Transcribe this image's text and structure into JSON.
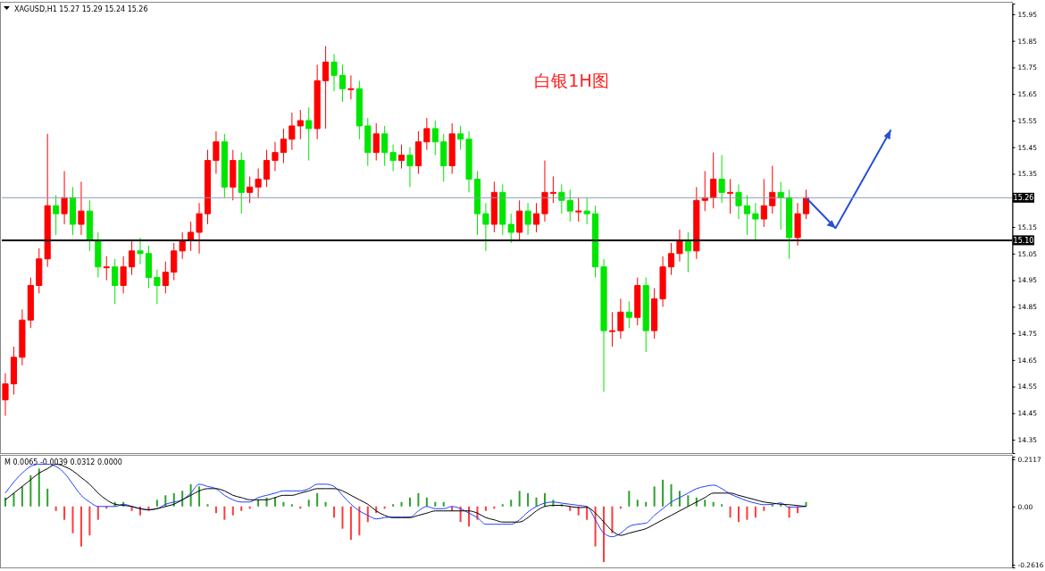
{
  "chart_data": [
    {
      "type": "candlestick",
      "title": "白银1H图",
      "subtitle": "XAGUSD,H1  15.27 15.29 15.24 15.26",
      "tick_labels": "y",
      "categories": [
        null,
        null,
        null,
        null,
        null,
        null,
        null,
        null,
        null,
        null,
        null,
        null,
        null,
        null,
        null,
        null,
        null,
        null,
        null,
        null,
        null,
        null,
        null,
        null,
        null,
        null,
        null,
        null,
        null,
        null,
        null,
        null,
        null,
        null,
        null,
        null,
        null,
        null,
        null,
        null,
        null,
        null,
        null,
        null,
        null,
        null,
        null,
        null,
        null,
        null,
        null,
        null,
        null,
        null,
        null,
        null,
        null,
        null,
        null,
        null,
        null,
        null,
        null,
        null,
        null,
        null,
        null,
        null,
        null,
        null,
        null,
        null,
        null,
        null,
        null,
        null,
        null,
        null,
        null,
        null,
        null,
        null,
        null,
        null,
        null,
        null,
        null,
        null,
        null,
        null,
        null,
        null,
        null,
        null,
        null,
        null,
        null,
        null,
        null,
        null,
        null,
        null,
        null,
        null,
        null,
        null,
        null,
        null,
        null,
        null,
        null,
        null,
        null,
        null,
        null,
        null,
        null,
        null,
        null,
        null
      ],
      "ohlc": [
        [
          14.5,
          14.6,
          14.44,
          14.56
        ],
        [
          14.56,
          14.7,
          14.52,
          14.66
        ],
        [
          14.66,
          14.84,
          14.63,
          14.8
        ],
        [
          14.8,
          14.96,
          14.77,
          14.93
        ],
        [
          14.93,
          15.07,
          14.9,
          15.03
        ],
        [
          15.03,
          15.5,
          15.0,
          15.23
        ],
        [
          15.23,
          15.27,
          15.12,
          15.2
        ],
        [
          15.2,
          15.36,
          15.16,
          15.26
        ],
        [
          15.26,
          15.3,
          15.12,
          15.16
        ],
        [
          15.16,
          15.32,
          15.12,
          15.21
        ],
        [
          15.21,
          15.25,
          15.06,
          15.1
        ],
        [
          15.1,
          15.13,
          14.96,
          15.0
        ],
        [
          15.0,
          15.04,
          14.95,
          15.0
        ],
        [
          15.0,
          15.03,
          14.86,
          14.93
        ],
        [
          14.93,
          15.04,
          14.9,
          15.0
        ],
        [
          15.0,
          15.1,
          14.97,
          15.06
        ],
        [
          15.06,
          15.11,
          15.01,
          15.05
        ],
        [
          15.05,
          15.08,
          14.92,
          14.96
        ],
        [
          14.96,
          14.99,
          14.86,
          14.93
        ],
        [
          14.93,
          15.02,
          14.9,
          14.98
        ],
        [
          14.98,
          15.09,
          14.95,
          15.06
        ],
        [
          15.06,
          15.13,
          15.03,
          15.1
        ],
        [
          15.1,
          15.17,
          15.06,
          15.13
        ],
        [
          15.13,
          15.24,
          15.05,
          15.2
        ],
        [
          15.2,
          15.44,
          15.16,
          15.4
        ],
        [
          15.4,
          15.51,
          15.35,
          15.47
        ],
        [
          15.47,
          15.5,
          15.26,
          15.3
        ],
        [
          15.3,
          15.44,
          15.25,
          15.4
        ],
        [
          15.4,
          15.43,
          15.2,
          15.28
        ],
        [
          15.28,
          15.34,
          15.24,
          15.3
        ],
        [
          15.3,
          15.37,
          15.26,
          15.33
        ],
        [
          15.33,
          15.44,
          15.3,
          15.4
        ],
        [
          15.4,
          15.47,
          15.36,
          15.43
        ],
        [
          15.43,
          15.52,
          15.39,
          15.48
        ],
        [
          15.48,
          15.58,
          15.44,
          15.53
        ],
        [
          15.53,
          15.59,
          15.48,
          15.55
        ],
        [
          15.55,
          15.6,
          15.4,
          15.52
        ],
        [
          15.52,
          15.76,
          15.48,
          15.7
        ],
        [
          15.7,
          15.83,
          15.52,
          15.77
        ],
        [
          15.77,
          15.8,
          15.66,
          15.72
        ],
        [
          15.72,
          15.76,
          15.62,
          15.67
        ],
        [
          15.67,
          15.72,
          15.63,
          15.67
        ],
        [
          15.67,
          15.7,
          15.48,
          15.53
        ],
        [
          15.53,
          15.56,
          15.38,
          15.43
        ],
        [
          15.43,
          15.54,
          15.4,
          15.5
        ],
        [
          15.5,
          15.53,
          15.38,
          15.43
        ],
        [
          15.43,
          15.46,
          15.36,
          15.4
        ],
        [
          15.4,
          15.46,
          15.37,
          15.42
        ],
        [
          15.42,
          15.45,
          15.3,
          15.38
        ],
        [
          15.38,
          15.51,
          15.35,
          15.47
        ],
        [
          15.47,
          15.56,
          15.44,
          15.52
        ],
        [
          15.52,
          15.55,
          15.42,
          15.47
        ],
        [
          15.47,
          15.5,
          15.32,
          15.38
        ],
        [
          15.38,
          15.54,
          15.35,
          15.5
        ],
        [
          15.5,
          15.53,
          15.44,
          15.48
        ],
        [
          15.48,
          15.51,
          15.28,
          15.33
        ],
        [
          15.33,
          15.36,
          15.12,
          15.2
        ],
        [
          15.2,
          15.24,
          15.06,
          15.16
        ],
        [
          15.16,
          15.32,
          15.13,
          15.28
        ],
        [
          15.28,
          15.31,
          15.12,
          15.16
        ],
        [
          15.16,
          15.2,
          15.09,
          15.13
        ],
        [
          15.13,
          15.25,
          15.1,
          15.21
        ],
        [
          15.21,
          15.24,
          15.12,
          15.16
        ],
        [
          15.16,
          15.24,
          15.13,
          15.2
        ],
        [
          15.2,
          15.4,
          15.17,
          15.28
        ],
        [
          15.28,
          15.34,
          15.24,
          15.28
        ],
        [
          15.28,
          15.31,
          15.2,
          15.25
        ],
        [
          15.25,
          15.29,
          15.17,
          15.21
        ],
        [
          15.21,
          15.26,
          15.17,
          15.21
        ],
        [
          15.21,
          15.26,
          15.16,
          15.2
        ],
        [
          15.2,
          15.23,
          14.96,
          15.0
        ],
        [
          15.0,
          15.03,
          14.53,
          14.76
        ],
        [
          14.76,
          14.83,
          14.7,
          14.76
        ],
        [
          14.76,
          14.88,
          14.73,
          14.83
        ],
        [
          14.83,
          14.87,
          14.77,
          14.81
        ],
        [
          14.81,
          14.96,
          14.78,
          14.93
        ],
        [
          14.93,
          14.96,
          14.68,
          14.76
        ],
        [
          14.76,
          14.92,
          14.73,
          14.88
        ],
        [
          14.88,
          15.04,
          14.85,
          15.0
        ],
        [
          15.0,
          15.09,
          14.97,
          15.05
        ],
        [
          15.05,
          15.14,
          15.02,
          15.1
        ],
        [
          15.1,
          15.13,
          14.98,
          15.06
        ],
        [
          15.06,
          15.3,
          15.03,
          15.25
        ],
        [
          15.25,
          15.36,
          15.21,
          15.26
        ],
        [
          15.26,
          15.43,
          15.22,
          15.33
        ],
        [
          15.33,
          15.42,
          15.24,
          15.28
        ],
        [
          15.28,
          15.33,
          15.2,
          15.28
        ],
        [
          15.28,
          15.31,
          15.18,
          15.23
        ],
        [
          15.23,
          15.27,
          15.12,
          15.2
        ],
        [
          15.2,
          15.24,
          15.1,
          15.18
        ],
        [
          15.18,
          15.33,
          15.15,
          15.23
        ],
        [
          15.23,
          15.38,
          15.2,
          15.28
        ],
        [
          15.28,
          15.32,
          15.14,
          15.26
        ],
        [
          15.26,
          15.29,
          15.03,
          15.11
        ],
        [
          15.11,
          15.24,
          15.08,
          15.2
        ],
        [
          15.2,
          15.29,
          15.18,
          15.26
        ],
        null,
        null,
        null,
        null,
        null,
        null,
        null,
        null,
        null,
        null,
        null,
        null,
        null,
        null,
        null,
        null,
        null,
        null,
        null,
        null,
        null,
        null,
        null,
        null
      ],
      "colors": [
        "#ff0000",
        "#ff0000",
        "#ff0000",
        "#ff0000",
        "#ff0000",
        "#ff0000",
        "#00e600",
        "#ff0000",
        "#00e600",
        "#ff0000",
        "#00e600",
        "#00e600",
        "#ff0000",
        "#00e600",
        "#ff0000",
        "#ff0000",
        "#00e600",
        "#00e600",
        "#00e600",
        "#ff0000",
        "#ff0000",
        "#ff0000",
        "#ff0000",
        "#ff0000",
        "#ff0000",
        "#ff0000",
        "#00e600",
        "#ff0000",
        "#00e600",
        "#ff0000",
        "#ff0000",
        "#ff0000",
        "#ff0000",
        "#ff0000",
        "#ff0000",
        "#ff0000",
        "#00e600",
        "#ff0000",
        "#ff0000",
        "#00e600",
        "#00e600",
        "#ff0000",
        "#00e600",
        "#00e600",
        "#ff0000",
        "#00e600",
        "#00e600",
        "#ff0000",
        "#00e600",
        "#ff0000",
        "#ff0000",
        "#00e600",
        "#00e600",
        "#ff0000",
        "#00e600",
        "#00e600",
        "#00e600",
        "#00e600",
        "#ff0000",
        "#00e600",
        "#00e600",
        "#ff0000",
        "#00e600",
        "#ff0000",
        "#ff0000",
        "#ff0000",
        "#00e600",
        "#00e600",
        "#ff0000",
        "#00e600",
        "#00e600",
        "#00e600",
        "#ff0000",
        "#ff0000",
        "#00e600",
        "#ff0000",
        "#00e600",
        "#ff0000",
        "#ff0000",
        "#ff0000",
        "#ff0000",
        "#00e600",
        "#ff0000",
        "#ff0000",
        "#ff0000",
        "#00e600",
        "#ff0000",
        "#00e600",
        "#00e600",
        "#00e600",
        "#ff0000",
        "#ff0000",
        "#00e600",
        "#00e600",
        "#ff0000",
        "#ff0000",
        null,
        null,
        null,
        null,
        null,
        null,
        null,
        null,
        null,
        null,
        null,
        null,
        null,
        null,
        null,
        null,
        null,
        null,
        null,
        null,
        null,
        null,
        null,
        null
      ],
      "ylim": [
        14.3,
        15.99
      ],
      "yticks": [
        14.35,
        14.45,
        14.55,
        14.65,
        14.75,
        14.85,
        14.95,
        15.05,
        15.15,
        {
          "value": 15.25,
          "label": null
        },
        15.35,
        15.45,
        15.55,
        15.65,
        15.75,
        15.85,
        15.95
      ],
      "ref_lines": [
        {
          "axis": "y",
          "value": 15.26,
          "label": "15.26",
          "color": "#8a9bb0"
        },
        {
          "axis": "y",
          "value": 15.1,
          "label": "15.10",
          "color": "#000000"
        }
      ]
    },
    {
      "type": "bar",
      "subtitle": "M 0.0065 -0.0039 0.0312 0.0000",
      "tick_labels": "y",
      "categories": [
        null,
        null,
        null,
        null,
        null,
        null,
        null,
        null,
        null,
        null,
        null,
        null,
        null,
        null,
        null,
        null,
        null,
        null,
        null,
        null,
        null,
        null,
        null,
        null,
        null,
        null,
        null,
        null,
        null,
        null,
        null,
        null,
        null,
        null,
        null,
        null,
        null,
        null,
        null,
        null,
        null,
        null,
        null,
        null,
        null,
        null,
        null,
        null,
        null,
        null,
        null,
        null,
        null,
        null,
        null,
        null,
        null,
        null,
        null,
        null,
        null,
        null,
        null,
        null,
        null,
        null,
        null,
        null,
        null,
        null,
        null,
        null,
        null,
        null,
        null,
        null,
        null,
        null,
        null,
        null,
        null,
        null,
        null,
        null,
        null,
        null,
        null,
        null,
        null,
        null,
        null,
        null,
        null,
        null,
        null,
        null,
        null,
        null,
        null,
        null,
        null,
        null,
        null,
        null,
        null,
        null,
        null,
        null,
        null,
        null,
        null,
        null,
        null,
        null,
        null,
        null,
        null,
        null,
        null,
        null
      ],
      "series": [
        {
          "type": "bar",
          "values": [
            0.04,
            0.06,
            0.09,
            0.14,
            0.17,
            0.08,
            -0.02,
            -0.06,
            -0.12,
            -0.18,
            -0.13,
            -0.06,
            -0.01,
            0.02,
            0.02,
            -0.02,
            -0.04,
            -0.02,
            0.03,
            0.05,
            0.06,
            0.07,
            0.1,
            0.09,
            0.01,
            -0.03,
            -0.06,
            -0.04,
            -0.02,
            -0.01,
            0.03,
            0.04,
            0.04,
            0.02,
            0.01,
            -0.01,
            0.03,
            0.06,
            0.02,
            -0.05,
            -0.1,
            -0.15,
            -0.13,
            -0.07,
            -0.03,
            -0.01,
            0.01,
            0.02,
            0.04,
            0.06,
            0.04,
            0.02,
            0.02,
            -0.02,
            -0.07,
            -0.09,
            -0.06,
            -0.02,
            -0.01,
            0.01,
            0.03,
            0.07,
            0.06,
            0.04,
            0.06,
            0.03,
            0.01,
            -0.02,
            -0.04,
            -0.06,
            -0.18,
            -0.25,
            -0.12,
            -0.01,
            0.07,
            0.03,
            0.02,
            0.09,
            0.12,
            0.1,
            0.07,
            0.05,
            0.04,
            0.03,
            0.02,
            0.01,
            -0.05,
            -0.07,
            -0.06,
            -0.05,
            -0.02,
            0.01,
            0.01,
            -0.05,
            -0.03,
            0.02,
            null,
            null,
            null,
            null,
            null,
            null,
            null,
            null,
            null,
            null,
            null,
            null,
            null,
            null,
            null,
            null,
            null,
            null,
            null,
            null,
            null,
            null,
            null,
            null
          ],
          "colors": [
            "#2ea02e",
            "#2ea02e",
            "#2ea02e",
            "#2ea02e",
            "#2ea02e",
            "#2ea02e",
            "#ff3b3b",
            "#ff3b3b",
            "#ff3b3b",
            "#ff3b3b",
            "#ff3b3b",
            "#ff3b3b",
            "#ff3b3b",
            "#2ea02e",
            "#2ea02e",
            "#ff3b3b",
            "#ff3b3b",
            "#ff3b3b",
            "#2ea02e",
            "#2ea02e",
            "#2ea02e",
            "#2ea02e",
            "#2ea02e",
            "#2ea02e",
            "#2ea02e",
            "#ff3b3b",
            "#ff3b3b",
            "#ff3b3b",
            "#ff3b3b",
            "#ff3b3b",
            "#2ea02e",
            "#2ea02e",
            "#2ea02e",
            "#2ea02e",
            "#2ea02e",
            "#ff3b3b",
            "#2ea02e",
            "#2ea02e",
            "#2ea02e",
            "#ff3b3b",
            "#ff3b3b",
            "#ff3b3b",
            "#ff3b3b",
            "#ff3b3b",
            "#ff3b3b",
            "#ff3b3b",
            "#2ea02e",
            "#2ea02e",
            "#2ea02e",
            "#2ea02e",
            "#2ea02e",
            "#2ea02e",
            "#2ea02e",
            "#ff3b3b",
            "#ff3b3b",
            "#ff3b3b",
            "#ff3b3b",
            "#ff3b3b",
            "#ff3b3b",
            "#2ea02e",
            "#2ea02e",
            "#2ea02e",
            "#2ea02e",
            "#2ea02e",
            "#2ea02e",
            "#2ea02e",
            "#2ea02e",
            "#ff3b3b",
            "#ff3b3b",
            "#ff3b3b",
            "#ff3b3b",
            "#ff3b3b",
            "#ff3b3b",
            "#ff3b3b",
            "#2ea02e",
            "#2ea02e",
            "#2ea02e",
            "#2ea02e",
            "#2ea02e",
            "#2ea02e",
            "#2ea02e",
            "#2ea02e",
            "#2ea02e",
            "#2ea02e",
            "#2ea02e",
            "#2ea02e",
            "#ff3b3b",
            "#ff3b3b",
            "#ff3b3b",
            "#ff3b3b",
            "#ff3b3b",
            "#2ea02e",
            "#2ea02e",
            "#ff3b3b",
            "#ff3b3b",
            "#2ea02e",
            null,
            null,
            null,
            null,
            null,
            null,
            null,
            null,
            null,
            null,
            null,
            null,
            null,
            null,
            null,
            null,
            null,
            null,
            null,
            null,
            null,
            null,
            null,
            null
          ]
        },
        {
          "type": "line",
          "color": "#1f3fff",
          "values": [
            0.06,
            0.11,
            0.15,
            0.18,
            0.19,
            0.19,
            0.18,
            0.15,
            0.1,
            0.05,
            0.02,
            0.0,
            0.0,
            0.0,
            0.01,
            0.0,
            -0.01,
            -0.015,
            -0.01,
            0.01,
            0.02,
            0.03,
            0.06,
            0.1,
            0.09,
            0.08,
            0.05,
            0.03,
            0.02,
            0.02,
            0.04,
            0.05,
            0.06,
            0.07,
            0.07,
            0.07,
            0.08,
            0.1,
            0.1,
            0.09,
            0.05,
            0.01,
            -0.02,
            -0.04,
            -0.056,
            -0.05,
            -0.048,
            -0.048,
            -0.048,
            -0.02,
            0.0,
            -0.01,
            -0.01,
            0.0,
            -0.01,
            -0.03,
            -0.05,
            -0.08,
            -0.08,
            -0.08,
            -0.08,
            -0.06,
            -0.025,
            0.0,
            0.015,
            0.02,
            0.015,
            0.01,
            0.005,
            0.0,
            -0.06,
            -0.12,
            -0.136,
            -0.12,
            -0.09,
            -0.08,
            -0.075,
            -0.04,
            -0.01,
            0.02,
            0.04,
            0.06,
            0.08,
            0.09,
            0.096,
            0.08,
            0.056,
            0.04,
            0.025,
            0.015,
            0.008,
            0.01,
            0.016,
            -0.004,
            -0.002,
            0.0,
            null,
            null,
            null,
            null,
            null,
            null,
            null,
            null,
            null,
            null,
            null,
            null,
            null,
            null,
            null,
            null,
            null,
            null,
            null,
            null,
            null,
            null,
            null,
            null
          ]
        },
        {
          "type": "line",
          "color": "#000000",
          "values": [
            0.03,
            0.06,
            0.09,
            0.12,
            0.15,
            0.17,
            0.19,
            0.18,
            0.16,
            0.13,
            0.1,
            0.06,
            0.03,
            0.01,
            0.005,
            0.0,
            -0.01,
            -0.015,
            -0.01,
            0.0,
            0.01,
            0.03,
            0.05,
            0.07,
            0.08,
            0.08,
            0.07,
            0.05,
            0.04,
            0.03,
            0.03,
            0.03,
            0.04,
            0.05,
            0.05,
            0.06,
            0.07,
            0.08,
            0.08,
            0.08,
            0.07,
            0.05,
            0.03,
            0.01,
            -0.02,
            -0.04,
            -0.05,
            -0.05,
            -0.05,
            -0.04,
            -0.03,
            -0.02,
            -0.02,
            -0.02,
            -0.02,
            -0.02,
            -0.03,
            -0.05,
            -0.06,
            -0.07,
            -0.07,
            -0.07,
            -0.05,
            -0.02,
            0.0,
            0.005,
            0.005,
            0.0,
            -0.005,
            -0.004,
            -0.03,
            -0.07,
            -0.11,
            -0.13,
            -0.12,
            -0.11,
            -0.1,
            -0.08,
            -0.06,
            -0.04,
            -0.02,
            0.0,
            0.02,
            0.04,
            0.06,
            0.06,
            0.06,
            0.05,
            0.04,
            0.03,
            0.02,
            0.015,
            0.01,
            0.008,
            0.004,
            0.0,
            null,
            null,
            null,
            null,
            null,
            null,
            null,
            null,
            null,
            null,
            null,
            null,
            null,
            null,
            null,
            null,
            null,
            null,
            null,
            null,
            null,
            null,
            null,
            null
          ]
        }
      ],
      "ylim": [
        -0.274,
        0.224
      ],
      "yticks": [
        0.2117,
        {
          "value": 0,
          "label": "0.00"
        },
        -0.2616
      ]
    }
  ]
}
